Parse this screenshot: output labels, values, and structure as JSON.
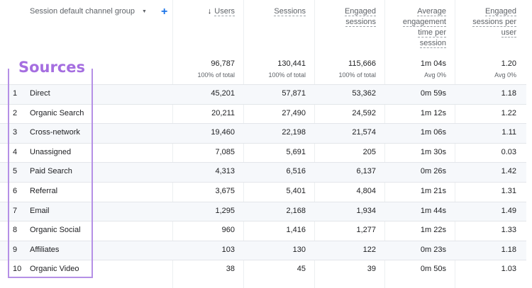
{
  "dimension": {
    "header": "Session default channel group"
  },
  "metrics": [
    {
      "label_lines": [
        "Users"
      ],
      "sorted": true,
      "total": "96,787",
      "sub": "100% of total"
    },
    {
      "label_lines": [
        "Sessions"
      ],
      "sorted": false,
      "total": "130,441",
      "sub": "100% of total"
    },
    {
      "label_lines": [
        "Engaged",
        "sessions"
      ],
      "sorted": false,
      "total": "115,666",
      "sub": "100% of total"
    },
    {
      "label_lines": [
        "Average",
        "engagement",
        "time per",
        "session"
      ],
      "sorted": false,
      "total": "1m 04s",
      "sub": "Avg 0%"
    },
    {
      "label_lines": [
        "Engaged",
        "sessions per",
        "user"
      ],
      "sorted": false,
      "total": "1.20",
      "sub": "Avg 0%"
    }
  ],
  "annotation": {
    "label": "Sources",
    "color": "#a56ee0"
  },
  "rows": [
    {
      "index": "1",
      "channel": "Direct",
      "users": "45,201",
      "sessions": "57,871",
      "engaged": "53,362",
      "avg_time": "0m 59s",
      "per_user": "1.18"
    },
    {
      "index": "2",
      "channel": "Organic Search",
      "users": "20,211",
      "sessions": "27,490",
      "engaged": "24,592",
      "avg_time": "1m 12s",
      "per_user": "1.22"
    },
    {
      "index": "3",
      "channel": "Cross-network",
      "users": "19,460",
      "sessions": "22,198",
      "engaged": "21,574",
      "avg_time": "1m 06s",
      "per_user": "1.11"
    },
    {
      "index": "4",
      "channel": "Unassigned",
      "users": "7,085",
      "sessions": "5,691",
      "engaged": "205",
      "avg_time": "1m 30s",
      "per_user": "0.03"
    },
    {
      "index": "5",
      "channel": "Paid Search",
      "users": "4,313",
      "sessions": "6,516",
      "engaged": "6,137",
      "avg_time": "0m 26s",
      "per_user": "1.42"
    },
    {
      "index": "6",
      "channel": "Referral",
      "users": "3,675",
      "sessions": "5,401",
      "engaged": "4,804",
      "avg_time": "1m 21s",
      "per_user": "1.31"
    },
    {
      "index": "7",
      "channel": "Email",
      "users": "1,295",
      "sessions": "2,168",
      "engaged": "1,934",
      "avg_time": "1m 44s",
      "per_user": "1.49"
    },
    {
      "index": "8",
      "channel": "Organic Social",
      "users": "960",
      "sessions": "1,416",
      "engaged": "1,277",
      "avg_time": "1m 22s",
      "per_user": "1.33"
    },
    {
      "index": "9",
      "channel": "Affiliates",
      "users": "103",
      "sessions": "130",
      "engaged": "122",
      "avg_time": "0m 23s",
      "per_user": "1.18"
    },
    {
      "index": "10",
      "channel": "Organic Video",
      "users": "38",
      "sessions": "45",
      "engaged": "39",
      "avg_time": "0m 50s",
      "per_user": "1.03"
    }
  ]
}
